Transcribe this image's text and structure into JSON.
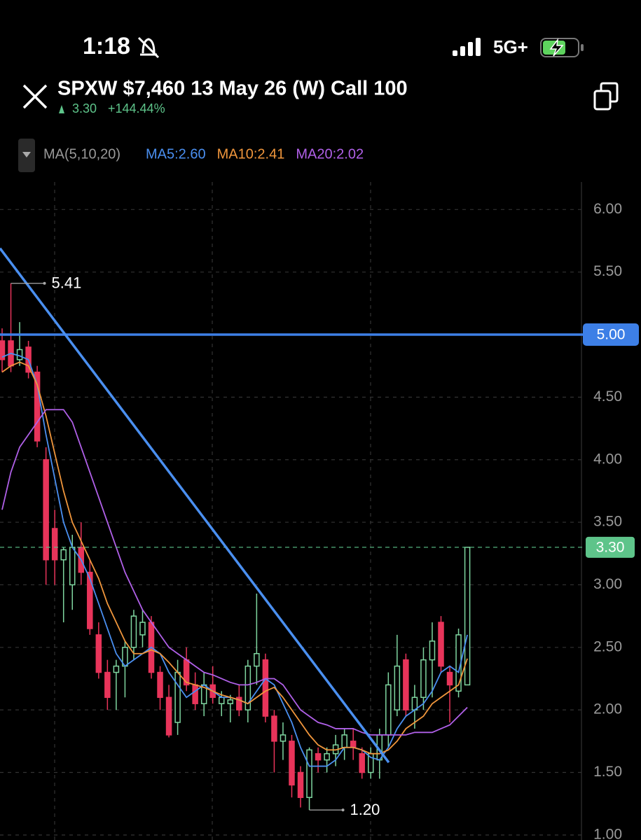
{
  "status_bar": {
    "time": "1:18",
    "network": "5G+"
  },
  "header": {
    "title": "SPXW $7,460 13 May 26 (W) Call 100",
    "price": "3.30",
    "change": "+144.44%"
  },
  "indicator_bar": {
    "label": "MA(5,10,20)"
  },
  "chart_data": {
    "type": "candlestick",
    "ylim": [
      0.96,
      6.22
    ],
    "yticks": [
      {
        "value": 6,
        "label": "6.00"
      },
      {
        "value": 5.5,
        "label": "5.50"
      },
      {
        "value": 5,
        "label": "5.00"
      },
      {
        "value": 4.5,
        "label": "4.50"
      },
      {
        "value": 4,
        "label": "4.00"
      },
      {
        "value": 3.5,
        "label": "3.50"
      },
      {
        "value": 3,
        "label": "3.00"
      },
      {
        "value": 2.5,
        "label": "2.50"
      },
      {
        "value": 2,
        "label": "2.00"
      },
      {
        "value": 1.5,
        "label": "1.50"
      },
      {
        "value": 1,
        "label": "1.00"
      }
    ],
    "grid": true,
    "up_color": "#7fd6a0",
    "down_color": "#e8345a",
    "open": [
      4.95,
      4.95,
      4.8,
      4.9,
      4.7,
      4.0,
      3.45,
      3.2,
      3.0,
      3.3,
      3.1,
      2.6,
      2.3,
      2.3,
      2.35,
      2.5,
      2.6,
      2.7,
      2.3,
      2.1,
      1.9,
      2.4,
      2.2,
      2.05,
      2.2,
      2.05,
      2.05,
      2.1,
      2.0,
      2.35,
      2.4,
      1.95,
      1.75,
      1.75,
      1.5,
      1.3,
      1.65,
      1.6,
      1.65,
      1.7,
      1.75,
      1.65,
      1.5,
      1.6,
      1.8,
      2.0,
      2.4,
      2.0,
      2.1,
      2.4,
      2.7,
      2.3,
      2.15,
      2.2
    ],
    "high": [
      5.05,
      5.41,
      5.1,
      4.95,
      4.75,
      4.1,
      3.6,
      3.3,
      3.4,
      3.5,
      3.2,
      2.7,
      2.4,
      2.4,
      2.55,
      2.8,
      2.8,
      2.75,
      2.35,
      2.2,
      2.4,
      2.5,
      2.3,
      2.3,
      2.35,
      2.15,
      2.12,
      2.2,
      2.4,
      2.93,
      2.45,
      2.0,
      1.9,
      1.8,
      1.55,
      1.7,
      1.7,
      1.7,
      1.8,
      1.85,
      1.85,
      1.7,
      1.7,
      1.85,
      2.3,
      2.6,
      2.45,
      2.2,
      2.5,
      2.7,
      2.75,
      2.35,
      2.65,
      3.3
    ],
    "low": [
      4.7,
      4.7,
      4.75,
      4.65,
      4.1,
      3.0,
      3.0,
      2.7,
      2.8,
      3.0,
      2.6,
      2.25,
      2.0,
      2.0,
      2.1,
      2.4,
      2.5,
      2.25,
      2.0,
      1.78,
      1.8,
      2.15,
      2.0,
      1.95,
      2.05,
      1.95,
      1.9,
      1.95,
      1.9,
      2.2,
      1.9,
      1.5,
      1.6,
      1.3,
      1.22,
      1.2,
      1.5,
      1.5,
      1.55,
      1.6,
      1.6,
      1.45,
      1.45,
      1.45,
      1.7,
      1.95,
      1.95,
      1.85,
      2.0,
      2.1,
      2.3,
      1.9,
      2.1,
      2.2
    ],
    "close": [
      4.8,
      4.75,
      4.88,
      4.7,
      4.15,
      3.2,
      3.2,
      3.28,
      3.3,
      3.1,
      2.65,
      2.3,
      2.1,
      2.35,
      2.5,
      2.75,
      2.7,
      2.3,
      2.1,
      1.8,
      2.3,
      2.2,
      2.05,
      2.2,
      2.1,
      2.1,
      2.08,
      2.0,
      2.35,
      2.45,
      1.95,
      1.75,
      1.8,
      1.4,
      1.3,
      1.68,
      1.6,
      1.65,
      1.72,
      1.8,
      1.7,
      1.5,
      1.65,
      1.8,
      2.2,
      2.35,
      2.0,
      2.1,
      2.4,
      2.55,
      2.35,
      2.2,
      2.6,
      3.3
    ],
    "series": [
      {
        "name": "MA5:2.60",
        "color": "#4a8ff0",
        "values": [
          4.82,
          4.85,
          4.83,
          4.8,
          4.6,
          4.2,
          3.85,
          3.5,
          3.3,
          3.2,
          3.05,
          2.85,
          2.65,
          2.45,
          2.35,
          2.4,
          2.45,
          2.5,
          2.45,
          2.3,
          2.2,
          2.1,
          2.15,
          2.2,
          2.15,
          2.1,
          2.1,
          2.08,
          2.05,
          2.15,
          2.25,
          2.2,
          2.05,
          1.9,
          1.7,
          1.55,
          1.55,
          1.55,
          1.6,
          1.7,
          1.7,
          1.68,
          1.62,
          1.6,
          1.7,
          1.85,
          1.95,
          2.0,
          2.05,
          2.15,
          2.3,
          2.35,
          2.3,
          2.6
        ]
      },
      {
        "name": "MA10:2.41",
        "color": "#f0963c",
        "values": [
          4.7,
          4.75,
          4.78,
          4.75,
          4.6,
          4.35,
          4.05,
          3.75,
          3.5,
          3.35,
          3.2,
          3.05,
          2.85,
          2.7,
          2.55,
          2.45,
          2.45,
          2.48,
          2.45,
          2.38,
          2.3,
          2.22,
          2.2,
          2.18,
          2.15,
          2.12,
          2.1,
          2.08,
          2.05,
          2.1,
          2.15,
          2.18,
          2.1,
          2.0,
          1.9,
          1.8,
          1.72,
          1.68,
          1.68,
          1.7,
          1.7,
          1.68,
          1.65,
          1.65,
          1.68,
          1.75,
          1.85,
          1.9,
          1.95,
          2.05,
          2.1,
          2.15,
          2.2,
          2.41
        ]
      },
      {
        "name": "MA20:2.02",
        "color": "#b060e8",
        "values": [
          3.6,
          3.9,
          4.1,
          4.2,
          4.3,
          4.4,
          4.4,
          4.4,
          4.3,
          4.1,
          3.9,
          3.7,
          3.5,
          3.3,
          3.1,
          2.95,
          2.8,
          2.7,
          2.6,
          2.5,
          2.45,
          2.4,
          2.35,
          2.3,
          2.28,
          2.25,
          2.22,
          2.2,
          2.2,
          2.22,
          2.25,
          2.25,
          2.2,
          2.1,
          2.0,
          1.95,
          1.9,
          1.88,
          1.85,
          1.85,
          1.85,
          1.82,
          1.8,
          1.8,
          1.8,
          1.8,
          1.8,
          1.82,
          1.82,
          1.82,
          1.85,
          1.88,
          1.95,
          2.02
        ]
      }
    ],
    "high_marker": {
      "value": 5.41,
      "label": "5.41",
      "index": 1
    },
    "low_marker": {
      "value": 1.2,
      "label": "1.20",
      "index": 35
    },
    "level_line": {
      "value": 5,
      "label": "5.00",
      "color": "#3d7fe6"
    },
    "last_price": {
      "value": 3.3,
      "label": "3.30",
      "color": "#5ec48a"
    },
    "trendline": {
      "x": [
        -0.24,
        44.05
      ],
      "values": [
        5.69,
        1.58
      ],
      "color": "#4a8ff0"
    }
  }
}
